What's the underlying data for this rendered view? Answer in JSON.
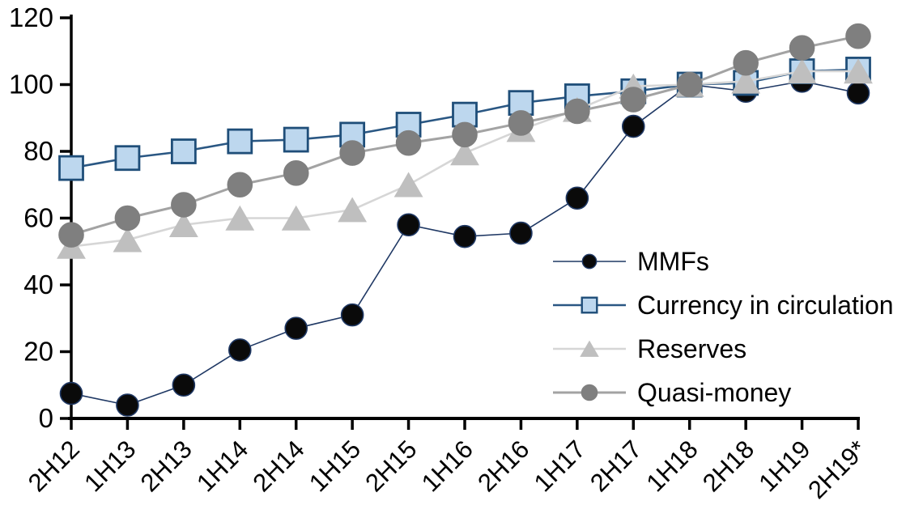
{
  "chart_data": {
    "type": "line",
    "title": "",
    "categories": [
      "2H12",
      "1H13",
      "2H13",
      "1H14",
      "2H14",
      "1H15",
      "2H15",
      "1H16",
      "2H16",
      "1H17",
      "2H17",
      "1H18",
      "2H18",
      "1H19",
      "2H19*"
    ],
    "series": [
      {
        "name": "MMFs",
        "marker": "circle",
        "line_color": "#1F3864",
        "marker_fill": "#0A0A0A",
        "marker_stroke": "#1F3864",
        "values": [
          7.5,
          4,
          10,
          20.5,
          27,
          31,
          58,
          54.5,
          55.5,
          66,
          87.5,
          100,
          98,
          101,
          97.5
        ]
      },
      {
        "name": "Currency in circulation",
        "marker": "square",
        "line_color": "#2A5783",
        "marker_fill": "#BDD7EE",
        "marker_stroke": "#1F4E79",
        "values": [
          75,
          78,
          80,
          83,
          83.5,
          85,
          88,
          91,
          94.5,
          96.5,
          98,
          100,
          100.5,
          104,
          104.5
        ]
      },
      {
        "name": "Reserves",
        "marker": "triangle",
        "line_color": "#D6D6D6",
        "marker_fill": "#BFBFBF",
        "marker_stroke": "#BFBFBF",
        "values": [
          51.5,
          53.5,
          58,
          60,
          60,
          62.5,
          70,
          79.5,
          86.5,
          92.5,
          99.5,
          100,
          101,
          104,
          104
        ]
      },
      {
        "name": "Quasi-money",
        "marker": "circle",
        "line_color": "#A3A3A3",
        "marker_fill": "#7F7F7F",
        "marker_stroke": "#7F7F7F",
        "values": [
          55,
          60,
          64,
          70,
          73.5,
          79.5,
          82.5,
          85,
          88.5,
          92,
          95.5,
          100,
          106.5,
          111,
          114.5
        ]
      }
    ],
    "ylim": [
      0,
      120
    ],
    "yticks": [
      0,
      20,
      40,
      60,
      80,
      100,
      120
    ],
    "ytick_labels": [
      "0",
      "20",
      "40",
      "60",
      "80",
      "100",
      "120"
    ],
    "xlabel": "",
    "ylabel": "",
    "grid": false,
    "legend_position": "inside-right",
    "axis_color": "#000000"
  }
}
